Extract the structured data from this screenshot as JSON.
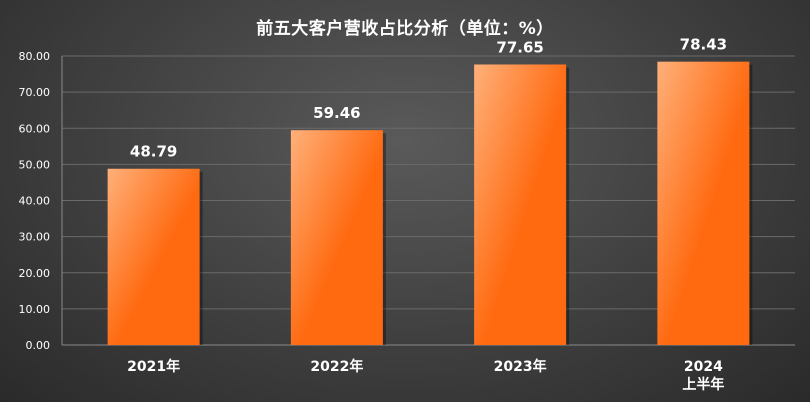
{
  "chart_data": {
    "type": "bar",
    "title": "前五大客户营收占比分析（单位：%）",
    "categories": [
      "2021年",
      "2022年",
      "2023年",
      "2024\n上半年"
    ],
    "values": [
      48.79,
      59.46,
      77.65,
      78.43
    ],
    "value_labels": [
      "48.79",
      "59.46",
      "77.65",
      "78.43"
    ],
    "xlabel": "",
    "ylabel": "",
    "ylim": [
      0,
      80
    ],
    "yticks": [
      "0.00",
      "10.00",
      "20.00",
      "30.00",
      "40.00",
      "50.00",
      "60.00",
      "70.00",
      "80.00"
    ],
    "grid": true,
    "legend": "none",
    "colors": {
      "bar_light": "#ffb07a",
      "bar_dark": "#ff6a10",
      "background": "#3c3c3c",
      "gridline": "#6a6a6a",
      "text": "#ffffff"
    }
  }
}
